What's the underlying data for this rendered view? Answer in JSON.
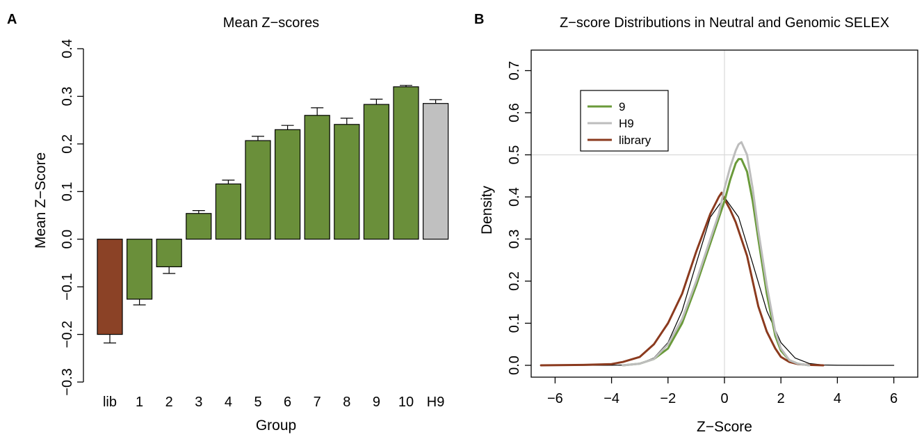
{
  "figure": {
    "panel_a_letter": "A",
    "panel_b_letter": "B"
  },
  "chart_data": [
    {
      "type": "bar",
      "title": "Mean Z−scores",
      "xlabel": "Group",
      "ylabel": "Mean Z−Score",
      "categories": [
        "lib",
        "1",
        "2",
        "3",
        "4",
        "5",
        "6",
        "7",
        "8",
        "9",
        "10",
        "H9"
      ],
      "values": [
        -0.2,
        -0.126,
        -0.058,
        0.054,
        0.116,
        0.207,
        0.23,
        0.26,
        0.241,
        0.283,
        0.32,
        0.285
      ],
      "error": [
        0.018,
        0.012,
        0.014,
        0.006,
        0.008,
        0.009,
        0.009,
        0.016,
        0.013,
        0.011,
        0.003,
        0.008
      ],
      "bar_colors": [
        "#8b4226",
        "#6a8f3a",
        "#6a8f3a",
        "#6a8f3a",
        "#6a8f3a",
        "#6a8f3a",
        "#6a8f3a",
        "#6a8f3a",
        "#6a8f3a",
        "#6a8f3a",
        "#6a8f3a",
        "#c0c0c0"
      ],
      "ylim": [
        -0.3,
        0.4
      ],
      "yticks": [
        -0.3,
        -0.2,
        -0.1,
        0.0,
        0.1,
        0.2,
        0.3,
        0.4
      ],
      "ytick_labels": [
        "−0.3",
        "−0.2",
        "−0.1",
        "0.0",
        "0.1",
        "0.2",
        "0.3",
        "0.4"
      ],
      "grid": false,
      "legend": "none"
    },
    {
      "type": "line",
      "title": "Z−score Distributions in Neutral and Genomic SELEX",
      "xlabel": "Z−Score",
      "ylabel": "Density",
      "xlim": [
        -6.5,
        6.5
      ],
      "ylim": [
        0,
        0.7
      ],
      "xticks": [
        -6,
        -4,
        -2,
        0,
        2,
        4,
        6
      ],
      "xtick_labels": [
        "−6",
        "−4",
        "−2",
        "0",
        "2",
        "4",
        "6"
      ],
      "yticks": [
        0.0,
        0.1,
        0.2,
        0.3,
        0.4,
        0.5,
        0.6,
        0.7
      ],
      "ytick_labels": [
        "0.0",
        "0.1",
        "0.2",
        "0.3",
        "0.4",
        "0.5",
        "0.6",
        "0.7"
      ],
      "reference_lines": {
        "x": 0,
        "y": 0.5
      },
      "legend": "top-left",
      "series": [
        {
          "name": "9",
          "color": "#6a9a3a",
          "x": [
            -3.6,
            -3.0,
            -2.5,
            -2.0,
            -1.5,
            -1.0,
            -0.5,
            -0.2,
            0.0,
            0.2,
            0.4,
            0.5,
            0.6,
            0.8,
            1.0,
            1.2,
            1.5,
            1.8,
            2.0,
            2.3,
            2.6,
            3.0
          ],
          "y": [
            0.0,
            0.004,
            0.015,
            0.04,
            0.1,
            0.19,
            0.29,
            0.35,
            0.39,
            0.44,
            0.48,
            0.49,
            0.49,
            0.46,
            0.39,
            0.3,
            0.17,
            0.07,
            0.035,
            0.012,
            0.004,
            0.0
          ]
        },
        {
          "name": "H9",
          "color": "#bdbdbd",
          "x": [
            -3.6,
            -3.0,
            -2.5,
            -2.0,
            -1.5,
            -1.0,
            -0.5,
            -0.2,
            0.0,
            0.2,
            0.4,
            0.5,
            0.6,
            0.8,
            1.0,
            1.2,
            1.5,
            1.8,
            2.0,
            2.3,
            2.6,
            3.0
          ],
          "y": [
            0.0,
            0.004,
            0.015,
            0.05,
            0.11,
            0.2,
            0.3,
            0.36,
            0.42,
            0.47,
            0.51,
            0.525,
            0.53,
            0.5,
            0.42,
            0.32,
            0.19,
            0.08,
            0.04,
            0.012,
            0.004,
            0.0
          ]
        },
        {
          "name": "library",
          "color": "#8b3a1e",
          "x": [
            -6.5,
            -5.0,
            -4.0,
            -3.6,
            -3.0,
            -2.5,
            -2.2,
            -2.0,
            -1.5,
            -1.0,
            -0.5,
            -0.2,
            -0.1,
            0.0,
            0.2,
            0.4,
            0.6,
            0.8,
            1.0,
            1.2,
            1.5,
            1.8,
            2.0,
            2.3,
            2.6,
            3.0,
            3.5
          ],
          "y": [
            0.0,
            0.001,
            0.003,
            0.008,
            0.02,
            0.05,
            0.08,
            0.1,
            0.17,
            0.27,
            0.36,
            0.4,
            0.41,
            0.395,
            0.37,
            0.34,
            0.3,
            0.26,
            0.2,
            0.14,
            0.08,
            0.04,
            0.02,
            0.008,
            0.003,
            0.001,
            0.0
          ]
        },
        {
          "name": "",
          "color": "#000000",
          "x": [
            -6.0,
            -5.0,
            -4.0,
            -3.5,
            -3.0,
            -2.5,
            -2.0,
            -1.5,
            -1.0,
            -0.5,
            0.0,
            0.5,
            1.0,
            1.5,
            2.0,
            2.5,
            3.0,
            3.5,
            4.0,
            5.0,
            6.0
          ],
          "y": [
            0.0,
            0.0,
            0.0001,
            0.0009,
            0.0044,
            0.0175,
            0.054,
            0.1295,
            0.242,
            0.352,
            0.399,
            0.352,
            0.242,
            0.1295,
            0.054,
            0.0175,
            0.0044,
            0.0009,
            0.0001,
            0.0,
            0.0
          ]
        }
      ]
    }
  ]
}
